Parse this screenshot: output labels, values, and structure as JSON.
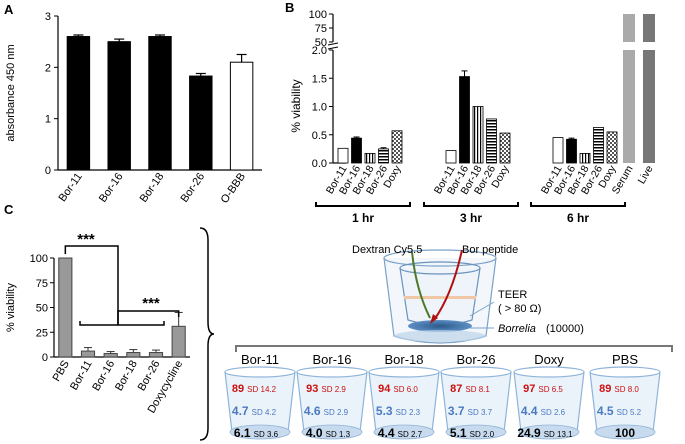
{
  "panel_labels": {
    "a": "A",
    "b": "B",
    "c": "C"
  },
  "chart_data": [
    {
      "panel": "A",
      "type": "bar",
      "title": "",
      "xlabel": "",
      "ylabel": "absorbance 450 nm",
      "ylim": [
        0,
        3
      ],
      "yticks": [
        0,
        1,
        2,
        3
      ],
      "categories": [
        "Bor-11",
        "Bor-16",
        "Bor-18",
        "Bor-26",
        "O-BBB"
      ],
      "values": [
        2.6,
        2.5,
        2.6,
        1.83,
        2.1
      ],
      "errors": [
        0.03,
        0.05,
        0.03,
        0.05,
        0.15
      ],
      "fills": [
        "black",
        "black",
        "black",
        "black",
        "white"
      ]
    },
    {
      "panel": "B",
      "type": "bar",
      "ylabel": "% viability",
      "ylim_lower": [
        0,
        2.0
      ],
      "yticks_lower": [
        "0.0",
        "0.5",
        "1.0",
        "1.5",
        "2.0"
      ],
      "ylim_upper": [
        50,
        100
      ],
      "yticks_upper": [
        "50",
        "75",
        "100"
      ],
      "groups": [
        {
          "label": "1 hr",
          "categories": [
            "Bor-11",
            "Bor-16",
            "Bor-18",
            "Bor-26",
            "Doxy"
          ],
          "values": [
            0.26,
            0.44,
            0.17,
            0.25,
            0.57
          ],
          "errors": [
            0,
            0.02,
            0,
            0.02,
            0
          ],
          "fills": [
            "white",
            "black",
            "vlines",
            "hlines",
            "checker"
          ]
        },
        {
          "label": "3 hr",
          "categories": [
            "Bor-11",
            "Bor-16",
            "Bor-18",
            "Bor-26",
            "Doxy"
          ],
          "values": [
            0.22,
            1.53,
            1.0,
            0.78,
            0.53
          ],
          "errors": [
            0,
            0.1,
            0,
            0,
            0
          ],
          "fills": [
            "white",
            "black",
            "vlines",
            "hlines",
            "checker"
          ]
        },
        {
          "label": "6 hr",
          "categories": [
            "Bor-11",
            "Bor-16",
            "Bor-18",
            "Bor-26",
            "Doxy"
          ],
          "values": [
            0.45,
            0.42,
            0.17,
            0.63,
            0.55
          ],
          "errors": [
            0,
            0.02,
            0,
            0,
            0
          ],
          "fills": [
            "white",
            "black",
            "vlines",
            "hlines",
            "checker"
          ]
        }
      ],
      "extra": [
        {
          "label": "Serum",
          "value": 100,
          "fill": "#aaaaaa"
        },
        {
          "label": "Live",
          "value": 100,
          "fill": "#777777"
        }
      ]
    },
    {
      "panel": "C",
      "type": "bar",
      "ylabel": "% viability",
      "ylim": [
        0,
        100
      ],
      "yticks": [
        0,
        25,
        50,
        75,
        100
      ],
      "categories": [
        "PBS",
        "Bor-11",
        "Bor-16",
        "Bor-18",
        "Bor-26",
        "Doxycycline"
      ],
      "values": [
        100,
        6,
        3.5,
        4.5,
        4.5,
        31
      ],
      "errors": [
        0,
        3.5,
        2,
        3,
        2.5,
        14
      ],
      "fill": "#999999",
      "significance": [
        "***",
        "***"
      ]
    }
  ],
  "diagram": {
    "dextran_label": "Dextran Cy5.5",
    "peptide_label": "Bor peptide",
    "teer_label": "TEER",
    "teer_value": "( > 80 Ω)",
    "borrelia_label": "Borrelia",
    "borrelia_count": "(10000)",
    "wells": [
      {
        "name": "Bor-11",
        "top": "89",
        "top_sd": "SD 14.2",
        "mid": "4.7",
        "mid_sd": "SD 4.2",
        "bot": "6.1",
        "bot_sd": "SD 3.6"
      },
      {
        "name": "Bor-16",
        "top": "93",
        "top_sd": "SD 2.9",
        "mid": "4.6",
        "mid_sd": "SD 2.9",
        "bot": "4.0",
        "bot_sd": "SD 1.3"
      },
      {
        "name": "Bor-18",
        "top": "94",
        "top_sd": "SD 6.0",
        "mid": "5.3",
        "mid_sd": "SD 2.3",
        "bot": "4.4",
        "bot_sd": "SD 2.7"
      },
      {
        "name": "Bor-26",
        "top": "87",
        "top_sd": "SD 8.1",
        "mid": "3.7",
        "mid_sd": "SD 3.7",
        "bot": "5.1",
        "bot_sd": "SD 2.0"
      },
      {
        "name": "Doxy",
        "top": "97",
        "top_sd": "SD 6.5",
        "mid": "4.4",
        "mid_sd": "SD 2.6",
        "bot": "24.9",
        "bot_sd": "SD 13.1"
      },
      {
        "name": "PBS",
        "top": "89",
        "top_sd": "SD 8.0",
        "mid": "4.5",
        "mid_sd": "SD 5.2",
        "bot": "100",
        "bot_sd": ""
      }
    ]
  },
  "colors": {
    "red": "#cc1111",
    "blue": "#4a7bc0",
    "well_edge": "#8fb4d9",
    "well_fill": "#eaf2fa"
  }
}
